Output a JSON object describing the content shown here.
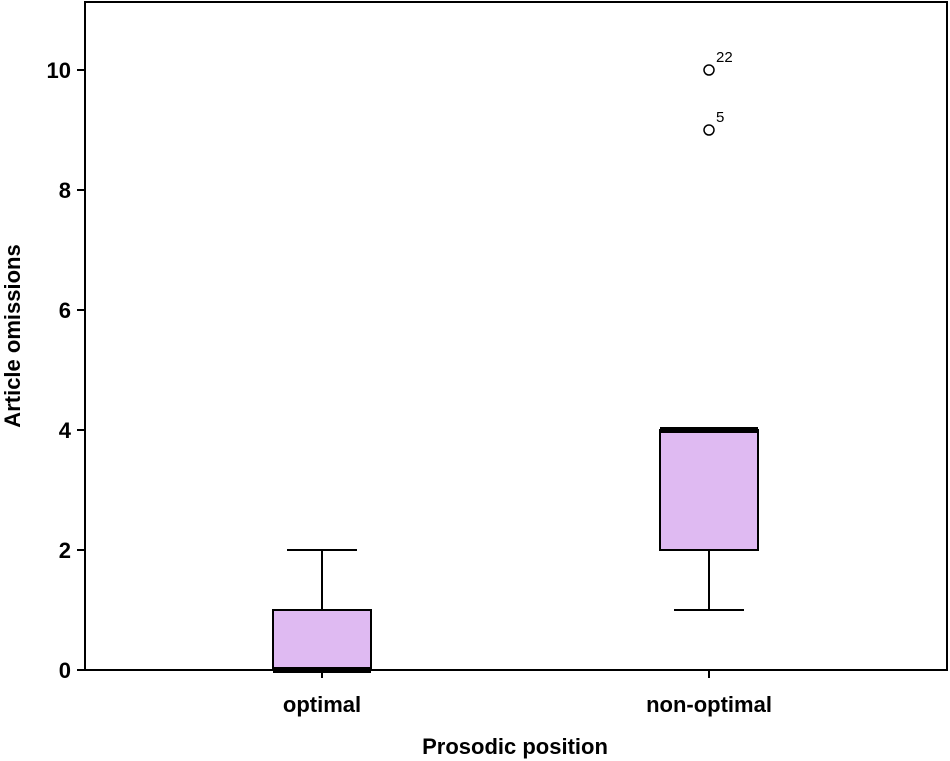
{
  "chart_data": {
    "type": "boxplot",
    "title": "",
    "xlabel": "Prosodic position",
    "ylabel": "Article omissions",
    "categories": [
      "optimal",
      "non-optimal"
    ],
    "ylim": [
      0,
      11
    ],
    "yticks": [
      "0",
      "2",
      "4",
      "6",
      "8",
      "10"
    ],
    "grid": false,
    "box_color": "#dfbaf2",
    "series": [
      {
        "category": "optimal",
        "whisker_low": 0,
        "q1": 0,
        "median": 0,
        "q3": 1,
        "whisker_high": 2,
        "outliers": []
      },
      {
        "category": "non-optimal",
        "whisker_low": 1,
        "q1": 2,
        "median": 4,
        "q3": 4,
        "whisker_high": 4,
        "outliers": [
          {
            "value": 10,
            "label": "22"
          },
          {
            "value": 9,
            "label": "5"
          }
        ]
      }
    ]
  }
}
